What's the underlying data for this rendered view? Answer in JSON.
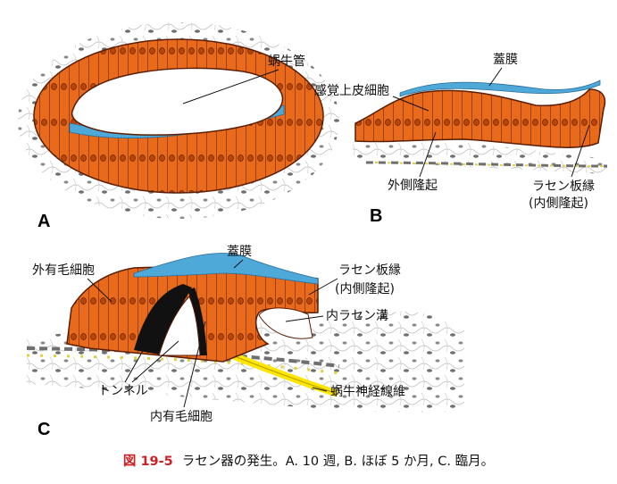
{
  "panels": {
    "a": {
      "letter": "A",
      "cochlear_duct": "蜗牛管"
    },
    "b": {
      "letter": "B",
      "tectorial_membrane": "蓋膜",
      "sensory_epithelium": "感覚上皮細胞",
      "outer_ridge": "外側隆起",
      "spiral_limbus_line1": "ラセン板縁",
      "spiral_limbus_line2": "(内側隆起)"
    },
    "c": {
      "letter": "C",
      "outer_hair_cells": "外有毛細胞",
      "tectorial_membrane": "蓋膜",
      "spiral_limbus_line1": "ラセン板縁",
      "spiral_limbus_line2": "(内側隆起)",
      "inner_spiral_sulcus": "内ラセン溝",
      "tunnel": "トンネル",
      "cochlear_nerve_fibers": "蜗牛神経線維",
      "inner_hair_cells": "内有毛細胞"
    }
  },
  "caption": {
    "figure_number": "図 19-5",
    "text": "ラセン器の発生。A. 10 週, B. ほぼ 5 か月, C. 臨月。"
  },
  "colors": {
    "epithelium": "#ea6a1c",
    "membrane": "#4ea8d8",
    "nerve": "#ffe600",
    "caption_red": "#cc2027"
  }
}
